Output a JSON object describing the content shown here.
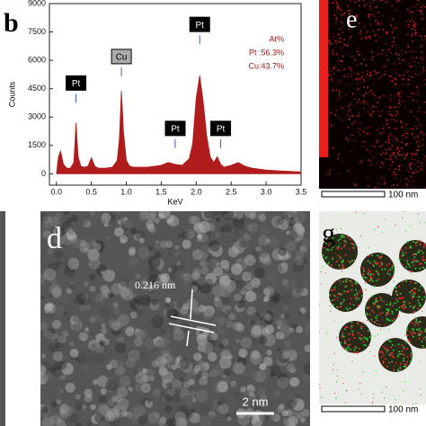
{
  "chart_data": {
    "type": "area",
    "panel": "b",
    "x_label": "KeV",
    "y_label": "Counts",
    "x": [
      0,
      0.03,
      0.06,
      0.1,
      0.15,
      0.2,
      0.25,
      0.28,
      0.31,
      0.35,
      0.4,
      0.45,
      0.5,
      0.55,
      0.6,
      0.7,
      0.8,
      0.87,
      0.9,
      0.93,
      0.96,
      1.0,
      1.05,
      1.1,
      1.2,
      1.3,
      1.4,
      1.5,
      1.6,
      1.7,
      1.8,
      1.9,
      1.95,
      2.0,
      2.05,
      2.1,
      2.15,
      2.2,
      2.25,
      2.3,
      2.35,
      2.4,
      2.5,
      2.6,
      2.7,
      2.8,
      3.0,
      3.2,
      3.5
    ],
    "values": [
      0,
      900,
      1200,
      500,
      300,
      300,
      600,
      2700,
      900,
      400,
      350,
      400,
      850,
      400,
      300,
      300,
      350,
      700,
      1800,
      4400,
      2200,
      700,
      400,
      350,
      350,
      350,
      400,
      450,
      600,
      500,
      450,
      800,
      1600,
      4000,
      5200,
      3800,
      2000,
      900,
      600,
      900,
      500,
      350,
      450,
      600,
      400,
      300,
      200,
      150,
      100
    ],
    "color": "#b01c1c",
    "xlim": [
      -0.1,
      3.5
    ],
    "xticks": [
      {
        "value": 0,
        "label": "0.0"
      },
      0.5,
      {
        "value": 1,
        "label": "1.0"
      },
      1.5,
      {
        "value": 2,
        "label": "2.0"
      },
      2.5,
      {
        "value": 3,
        "label": "3.0"
      },
      3.5
    ],
    "ylim": [
      -600,
      9000
    ],
    "yticks": [
      0,
      1500,
      3000,
      4500,
      6000,
      7500,
      9000
    ],
    "annotations": [
      {
        "text": "Pt",
        "x": 0.28,
        "y": 4800
      },
      {
        "text": "Cu",
        "x": 0.93,
        "y": 6200
      },
      {
        "text": "Pt",
        "x": 2.05,
        "y": 7900
      },
      {
        "text": "Pt",
        "x": 1.7,
        "y": 2400
      },
      {
        "text": "Pt",
        "x": 2.35,
        "y": 2400
      }
    ],
    "composition": [
      "At%",
      "Pt :56.3%",
      "Cu:43.7%"
    ]
  },
  "panels": {
    "d": {
      "label": "d",
      "annotation": "0.216 nm",
      "scale_bar": "2 nm"
    },
    "e": {
      "label": "e",
      "scale_bar": "100 nm"
    },
    "g": {
      "label": "g",
      "scale_bar": "100 nm"
    }
  }
}
